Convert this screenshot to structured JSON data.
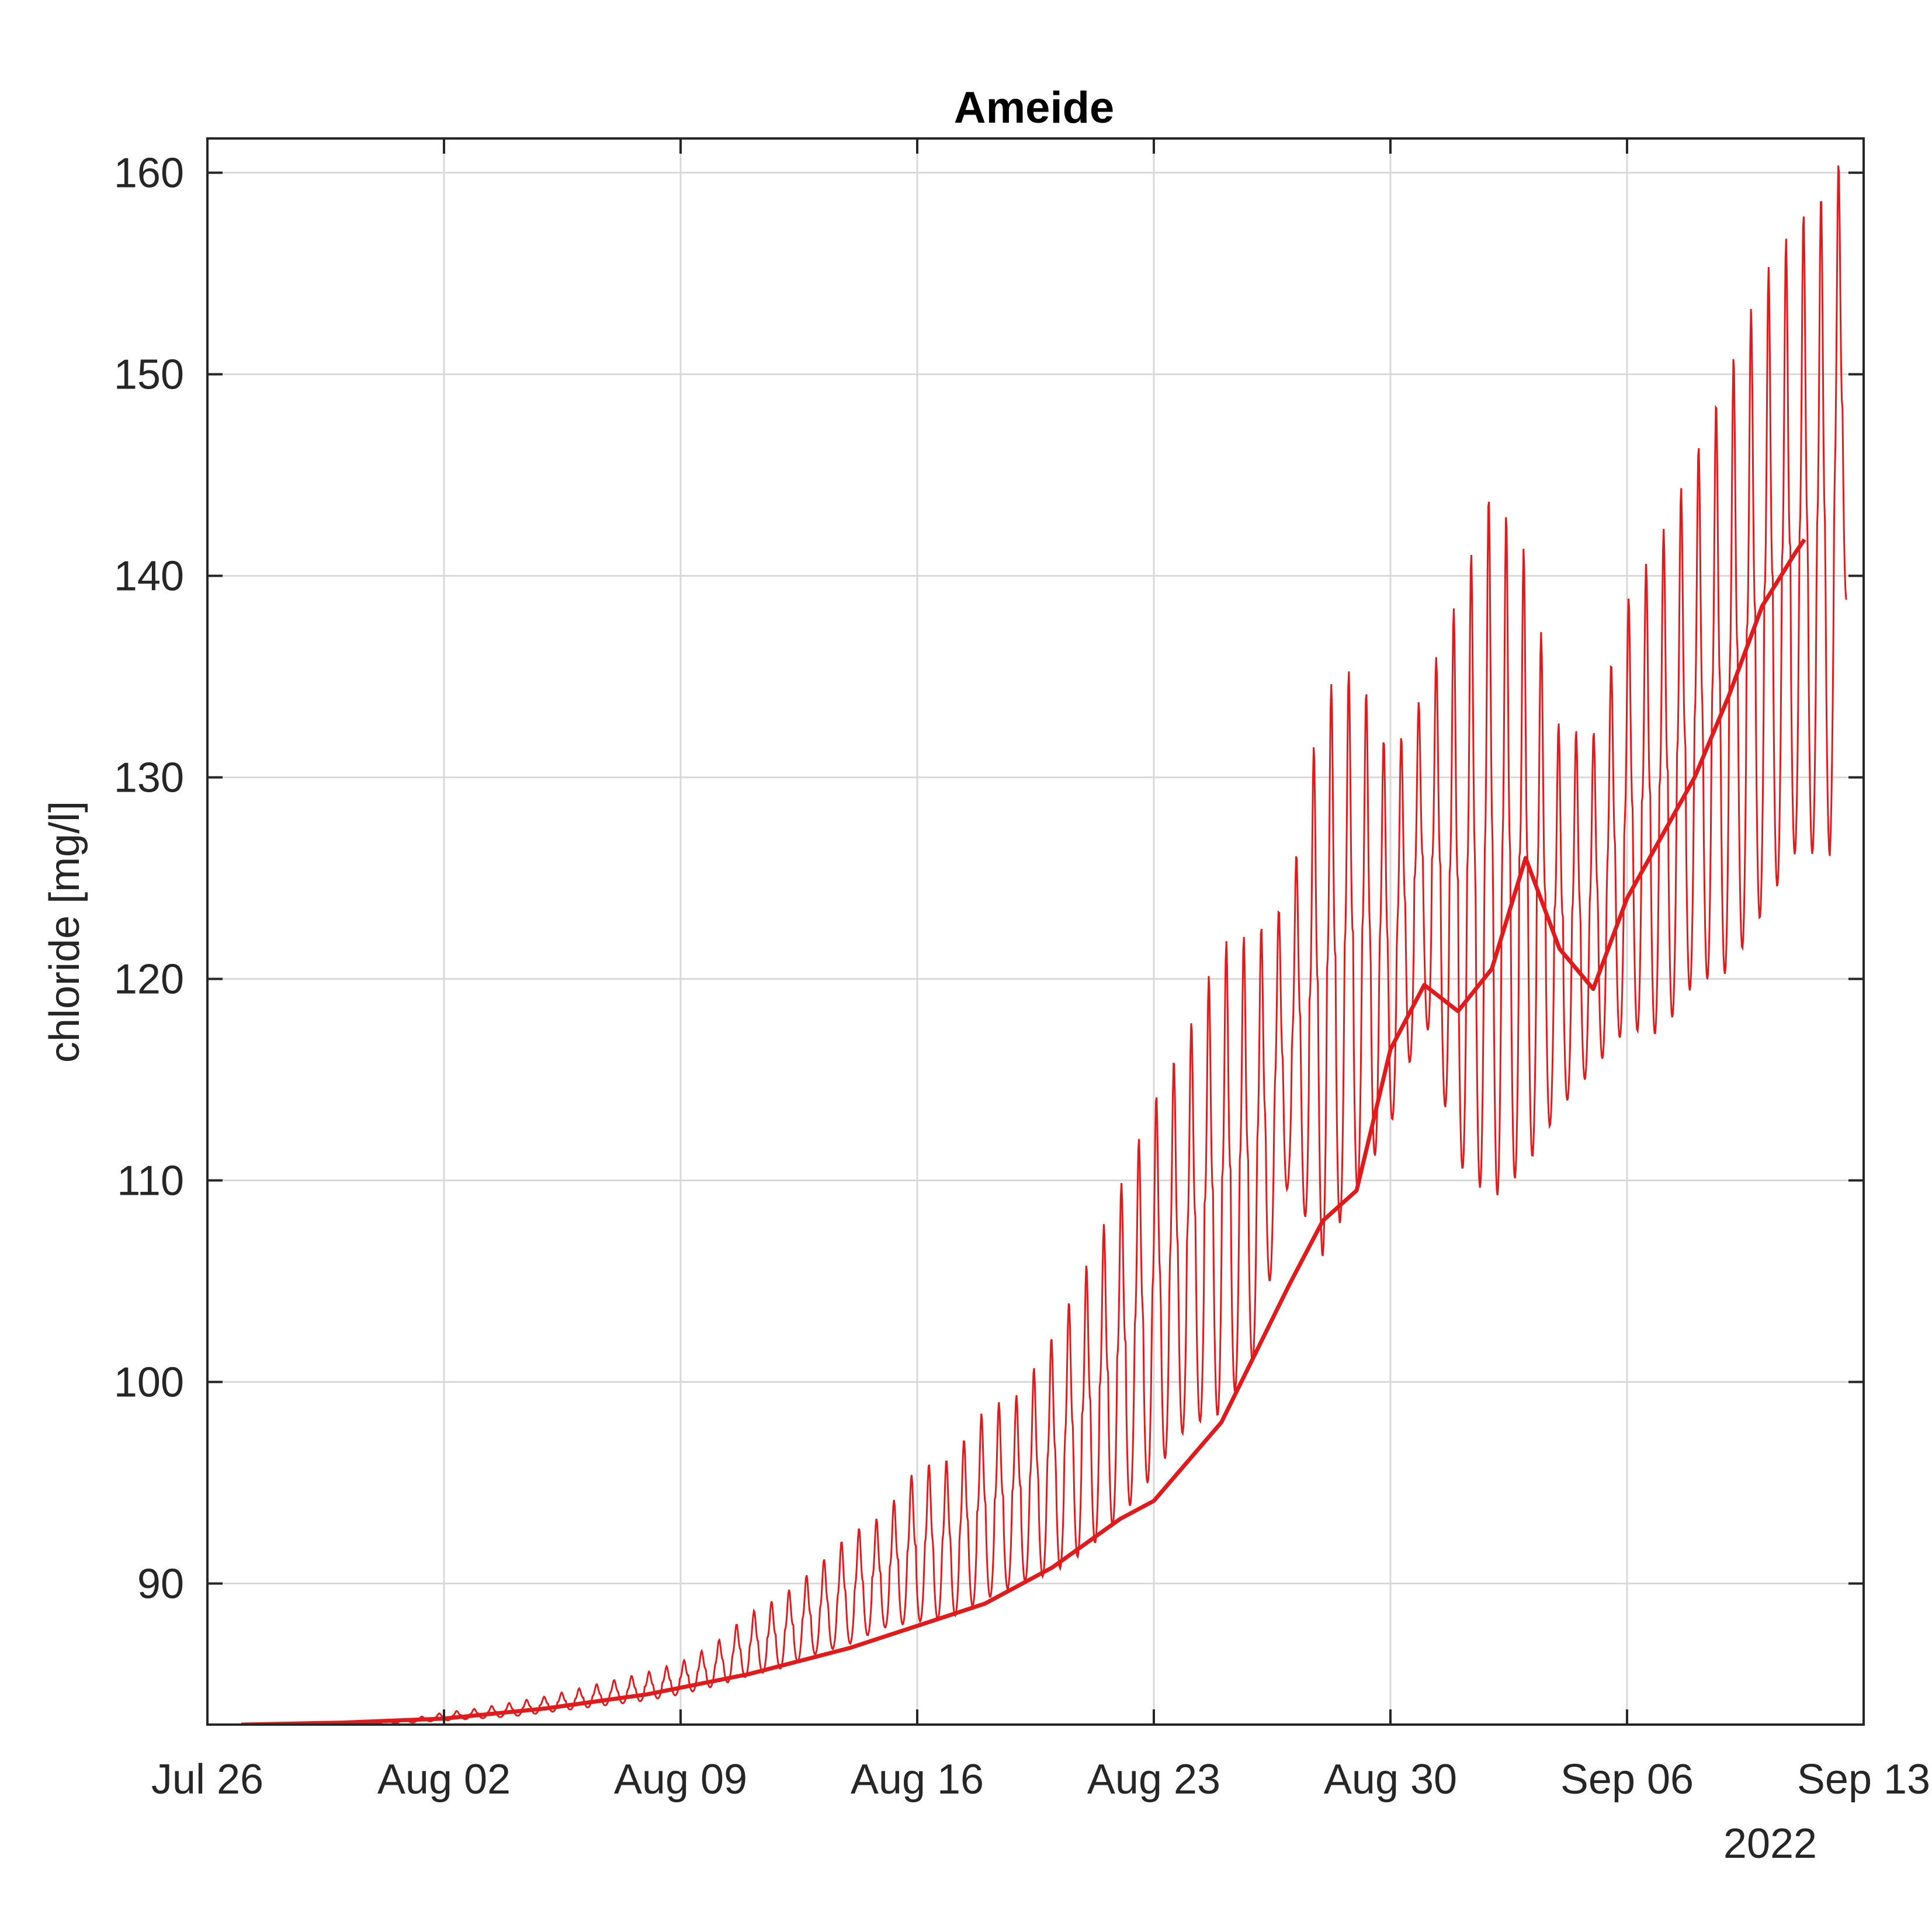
{
  "chart_data": {
    "type": "line",
    "title": "Ameide",
    "xlabel": "",
    "ylabel": "chloride [mg/l]",
    "x_year_label": "2022",
    "xlim": [
      "2022-07-26",
      "2022-09-13"
    ],
    "ylim": [
      83,
      161.7
    ],
    "x_ticks": [
      {
        "date": "2022-07-26",
        "label": "Jul 26"
      },
      {
        "date": "2022-08-02",
        "label": "Aug 02"
      },
      {
        "date": "2022-08-09",
        "label": "Aug 09"
      },
      {
        "date": "2022-08-16",
        "label": "Aug 16"
      },
      {
        "date": "2022-08-23",
        "label": "Aug 23"
      },
      {
        "date": "2022-08-30",
        "label": "Aug 30"
      },
      {
        "date": "2022-09-06",
        "label": "Sep 06"
      },
      {
        "date": "2022-09-13",
        "label": "Sep 13"
      }
    ],
    "y_ticks": [
      90,
      100,
      110,
      120,
      130,
      140,
      150,
      160
    ],
    "grid": true,
    "legend": "none",
    "colors": {
      "series": "#e31a1c",
      "axes": "#262626",
      "grid": "#d9d9d9"
    },
    "series": [
      {
        "style": "thin",
        "x": [
          "2022-07-26",
          "2022-07-28",
          "2022-07-30",
          "2022-08-01",
          "2022-08-02",
          "2022-08-03",
          "2022-08-04",
          "2022-08-05",
          "2022-08-06",
          "2022-08-07",
          "2022-08-08",
          "2022-08-09",
          "2022-08-10",
          "2022-08-11",
          "2022-08-12",
          "2022-08-13",
          "2022-08-14",
          "2022-08-15",
          "2022-08-16",
          "2022-08-17",
          "2022-08-18",
          "2022-08-19",
          "2022-08-20",
          "2022-08-21",
          "2022-08-22",
          "2022-08-23",
          "2022-08-24",
          "2022-08-25",
          "2022-08-26",
          "2022-08-27",
          "2022-08-28",
          "2022-08-29",
          "2022-08-30",
          "2022-08-31",
          "2022-09-01",
          "2022-09-02",
          "2022-09-03",
          "2022-09-04",
          "2022-09-05",
          "2022-09-06",
          "2022-09-07",
          "2022-09-08",
          "2022-09-09",
          "2022-09-10",
          "2022-09-11",
          "2022-09-12",
          "2022-09-12 12:00"
        ],
        "y": [
          83,
          83,
          83.1,
          83.2,
          83.3,
          83.5,
          83.7,
          84,
          84.2,
          84.5,
          84.8,
          85.1,
          85.5,
          86.3,
          87.0,
          87.6,
          88.5,
          89.5,
          90.3,
          91.1,
          91.5,
          92.3,
          92.8,
          94.5,
          96.0,
          97.5,
          99.6,
          102.1,
          104.6,
          107.5,
          109.5,
          110.4,
          118.5,
          121.7,
          120.2,
          120.0,
          122.0,
          131.0,
          125.0,
          120.0,
          124.0,
          127.0,
          130.0,
          136.5,
          142.0,
          146.5,
          140.0
        ],
        "y_max": [
          83,
          83,
          83.1,
          83.3,
          83.6,
          83.8,
          84.1,
          84.4,
          84.8,
          85.2,
          85.6,
          86.1,
          87.0,
          88.5,
          89.4,
          90.8,
          92.5,
          93.4,
          95.8,
          96.2,
          98.7,
          99.4,
          102.3,
          105.8,
          109.7,
          114.0,
          117.4,
          121.8,
          122.3,
          124.0,
          134.3,
          135.6,
          131.0,
          134.3,
          139.0,
          144.5,
          141.2,
          132.5,
          132.2,
          138.8,
          142.0,
          146.0,
          150.2,
          154.8,
          157.6,
          159.4,
          161.6
        ],
        "y_min": [
          83,
          83,
          83,
          83.1,
          83.2,
          83.3,
          83.4,
          83.6,
          83.8,
          84.0,
          84.2,
          84.5,
          84.9,
          85.4,
          85.8,
          86.5,
          87.0,
          87.8,
          88.1,
          88.3,
          89.2,
          90.0,
          90.5,
          91.6,
          93.2,
          95.4,
          97.8,
          98.4,
          101.2,
          110.0,
          106.2,
          109.5,
          112.7,
          118.2,
          110.8,
          109.0,
          110.6,
          113.5,
          115.5,
          117.5,
          117.2,
          119.8,
          120.3,
          123.2,
          126.3,
          126.1,
          138.7
        ]
      },
      {
        "style": "thick",
        "x": [
          "2022-07-27",
          "2022-07-30",
          "2022-08-02",
          "2022-08-05",
          "2022-08-08",
          "2022-08-11",
          "2022-08-14",
          "2022-08-16",
          "2022-08-18",
          "2022-08-20",
          "2022-08-22",
          "2022-08-23",
          "2022-08-25",
          "2022-08-27",
          "2022-08-28",
          "2022-08-29",
          "2022-08-30",
          "2022-08-31",
          "2022-09-01",
          "2022-09-02",
          "2022-09-03",
          "2022-09-04",
          "2022-09-05",
          "2022-09-06",
          "2022-09-07",
          "2022-09-08",
          "2022-09-09",
          "2022-09-10",
          "2022-09-11",
          "2022-09-11 06:00"
        ],
        "y": [
          83,
          83.1,
          83.3,
          83.8,
          84.5,
          85.5,
          86.8,
          87.9,
          89.0,
          90.8,
          93.2,
          94.1,
          98.0,
          104.8,
          108.0,
          109.5,
          116.5,
          119.7,
          118.4,
          120.5,
          126.0,
          121.5,
          119.5,
          124.0,
          127.0,
          130.0,
          134.0,
          138.5,
          141.2,
          141.8
        ]
      }
    ]
  }
}
